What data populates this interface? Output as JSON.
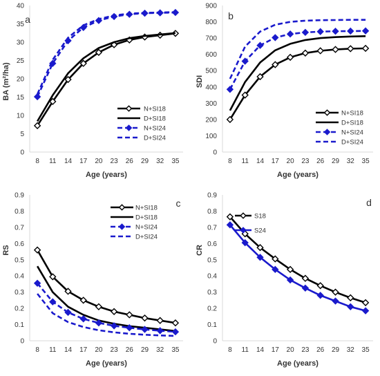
{
  "chart_data": [
    {
      "id": "a",
      "type": "line",
      "panel_letter": "a",
      "xlabel": "Age (years)",
      "ylabel": "BA (m²/ha)",
      "x": [
        8,
        11,
        14,
        17,
        20,
        23,
        26,
        29,
        32,
        35
      ],
      "ylim": [
        0,
        40
      ],
      "yticks": [
        0,
        5,
        10,
        15,
        20,
        25,
        30,
        35,
        40
      ],
      "grid": false,
      "legend_position": "bottom-right",
      "series": [
        {
          "name": "N+SI18",
          "style": "solid",
          "color": "#000000",
          "marker": "diamond-open",
          "values": [
            7.2,
            13.8,
            19.8,
            24.2,
            27.2,
            29.3,
            30.6,
            31.4,
            31.9,
            32.4
          ]
        },
        {
          "name": "D+SI18",
          "style": "solid",
          "color": "#000000",
          "marker": "none",
          "values": [
            8.4,
            15.5,
            21.5,
            25.6,
            28.4,
            30.0,
            31.1,
            31.7,
            32.1,
            32.5
          ]
        },
        {
          "name": "N+SI24",
          "style": "dashed",
          "color": "#1a1acc",
          "marker": "diamond-filled",
          "values": [
            15.1,
            24.2,
            30.4,
            34.0,
            35.9,
            37.0,
            37.6,
            37.9,
            38.0,
            38.1
          ]
        },
        {
          "name": "D+SI24",
          "style": "dashed",
          "color": "#1a1acc",
          "marker": "none",
          "values": [
            15.8,
            25.2,
            31.2,
            34.6,
            36.3,
            37.3,
            37.8,
            38.0,
            38.1,
            38.2
          ]
        }
      ]
    },
    {
      "id": "b",
      "type": "line",
      "panel_letter": "b",
      "xlabel": "Age (years)",
      "ylabel": "SDI",
      "x": [
        8,
        11,
        14,
        17,
        20,
        23,
        26,
        29,
        32,
        35
      ],
      "ylim": [
        0,
        900
      ],
      "yticks": [
        0,
        100,
        200,
        300,
        400,
        500,
        600,
        700,
        800,
        900
      ],
      "grid": false,
      "legend_position": "bottom-right",
      "series": [
        {
          "name": "N+SI18",
          "style": "solid",
          "color": "#000000",
          "marker": "diamond-open",
          "values": [
            200,
            350,
            463,
            537,
            582,
            608,
            622,
            630,
            635,
            637
          ]
        },
        {
          "name": "D+SI18",
          "style": "solid",
          "color": "#000000",
          "marker": "none",
          "values": [
            255,
            430,
            550,
            625,
            665,
            688,
            700,
            706,
            710,
            712
          ]
        },
        {
          "name": "N+SI24",
          "style": "dashed",
          "color": "#1a1acc",
          "marker": "diamond-filled",
          "values": [
            385,
            558,
            655,
            703,
            725,
            735,
            740,
            742,
            743,
            744
          ]
        },
        {
          "name": "D+SI24",
          "style": "dashed",
          "color": "#1a1acc",
          "marker": "none",
          "values": [
            450,
            648,
            740,
            782,
            800,
            807,
            810,
            811,
            812,
            812
          ]
        }
      ]
    },
    {
      "id": "c",
      "type": "line",
      "panel_letter": "c",
      "xlabel": "Age (years)",
      "ylabel": "RS",
      "x": [
        8,
        11,
        14,
        17,
        20,
        23,
        26,
        29,
        32,
        35
      ],
      "ylim": [
        0,
        0.9
      ],
      "yticks": [
        0,
        0.1,
        0.2,
        0.3,
        0.4,
        0.5,
        0.6,
        0.7,
        0.8,
        0.9
      ],
      "grid": false,
      "legend_position": "top-right",
      "series": [
        {
          "name": "N+SI18",
          "style": "solid",
          "color": "#000000",
          "marker": "diamond-open",
          "values": [
            0.56,
            0.395,
            0.305,
            0.25,
            0.21,
            0.18,
            0.16,
            0.14,
            0.125,
            0.11
          ]
        },
        {
          "name": "D+SI18",
          "style": "solid",
          "color": "#000000",
          "marker": "none",
          "values": [
            0.46,
            0.3,
            0.21,
            0.16,
            0.125,
            0.105,
            0.09,
            0.08,
            0.07,
            0.06
          ]
        },
        {
          "name": "N+SI24",
          "style": "dashed",
          "color": "#1a1acc",
          "marker": "diamond-filled",
          "values": [
            0.355,
            0.24,
            0.175,
            0.135,
            0.11,
            0.092,
            0.08,
            0.07,
            0.062,
            0.055
          ]
        },
        {
          "name": "D+SI24",
          "style": "dashed",
          "color": "#1a1acc",
          "marker": "none",
          "values": [
            0.29,
            0.17,
            0.115,
            0.085,
            0.065,
            0.052,
            0.043,
            0.037,
            0.033,
            0.03
          ]
        }
      ]
    },
    {
      "id": "d",
      "type": "line",
      "panel_letter": "d",
      "xlabel": "Age (years)",
      "ylabel": "CR",
      "x": [
        8,
        11,
        14,
        17,
        20,
        23,
        26,
        29,
        32,
        35
      ],
      "ylim": [
        0,
        0.9
      ],
      "yticks": [
        0,
        0.1,
        0.2,
        0.3,
        0.4,
        0.5,
        0.6,
        0.7,
        0.8,
        0.9
      ],
      "grid": false,
      "legend_position": "top-left",
      "series": [
        {
          "name": "S18",
          "style": "solid",
          "color": "#000000",
          "marker": "diamond-open",
          "values": [
            0.765,
            0.66,
            0.575,
            0.505,
            0.44,
            0.385,
            0.34,
            0.3,
            0.265,
            0.235
          ]
        },
        {
          "name": "S24",
          "style": "solid",
          "color": "#1a1acc",
          "marker": "diamond-filled",
          "values": [
            0.715,
            0.605,
            0.515,
            0.44,
            0.375,
            0.325,
            0.28,
            0.245,
            0.21,
            0.185
          ]
        }
      ]
    }
  ]
}
